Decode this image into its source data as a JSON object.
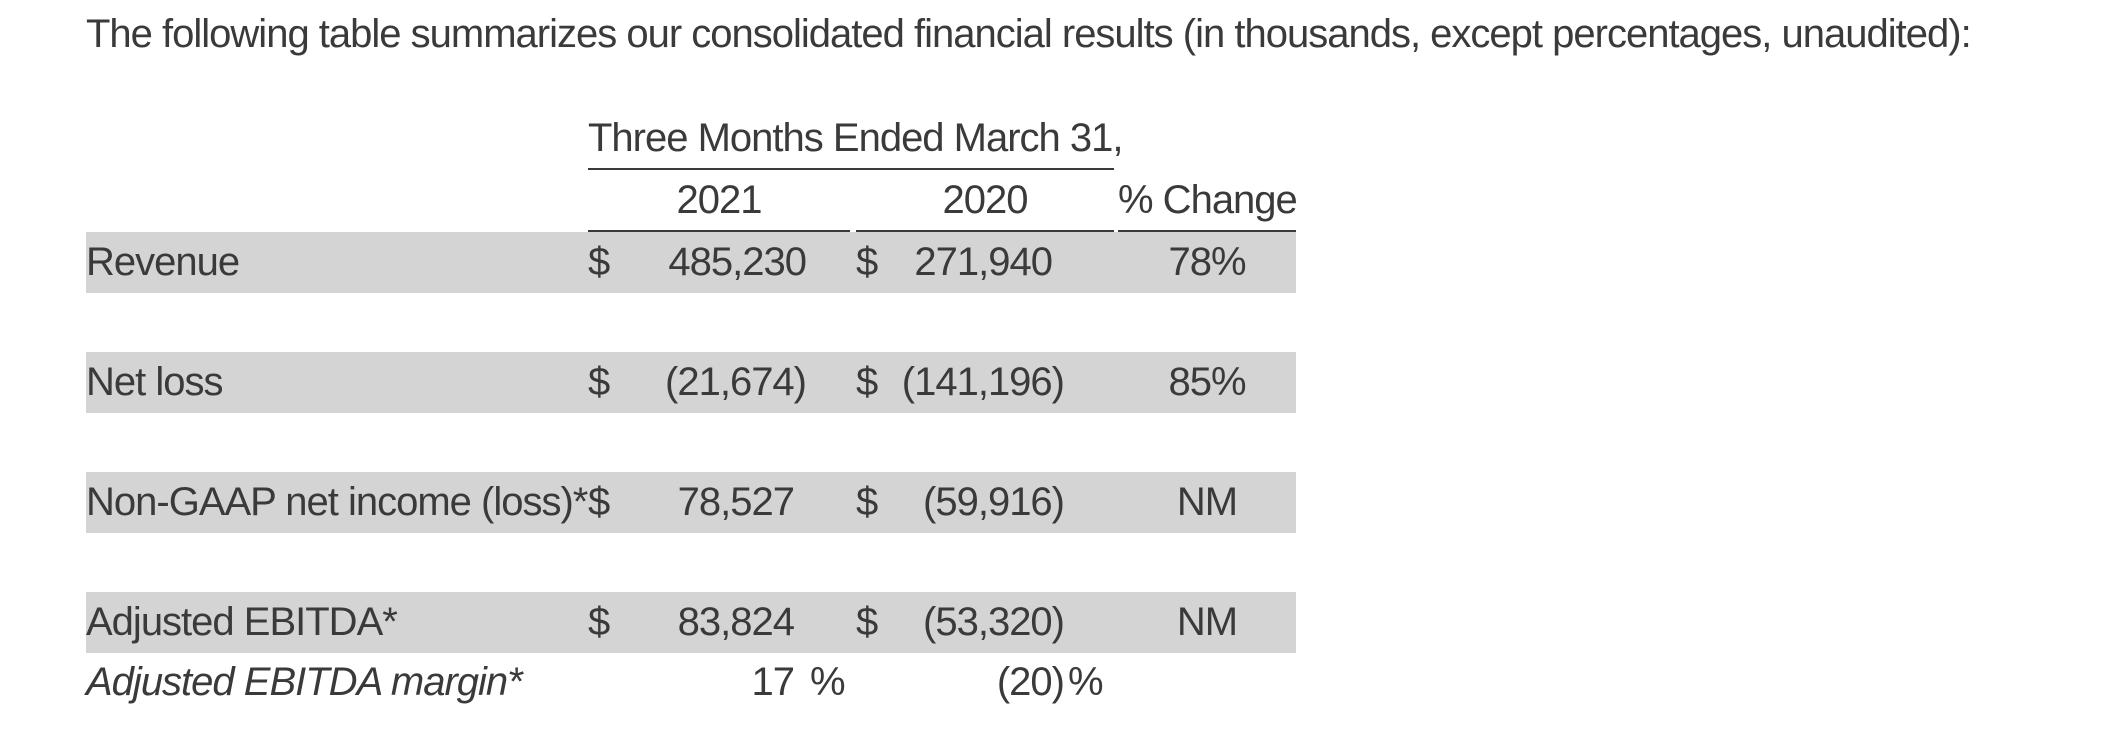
{
  "intro_text": "The following table summarizes our consolidated financial results (in thousands, except percentages, unaudited):",
  "table": {
    "period_header": "Three Months Ended March 31,",
    "col_2021": "2021",
    "col_2020": "2020",
    "col_change": "% Change",
    "rows": [
      {
        "label": "Revenue",
        "cur1": "$",
        "v2021": "485,230",
        "cur2": "$",
        "v2020": "271,940",
        "change": "78%"
      },
      {
        "label": "Net loss",
        "cur1": "$",
        "v2021": "(21,674)",
        "cur2": "$",
        "v2020": "(141,196)",
        "change": "85%"
      },
      {
        "label": "Non-GAAP net income (loss)*",
        "cur1": "$",
        "v2021": "78,527",
        "cur2": "$",
        "v2020": "(59,916)",
        "change": "NM"
      },
      {
        "label": "Adjusted EBITDA*",
        "cur1": "$",
        "v2021": "83,824",
        "cur2": "$",
        "v2020": "(53,320)",
        "change": "NM"
      }
    ],
    "margin_row": {
      "label": "Adjusted EBITDA margin*",
      "v2021": "17",
      "v2021_pct": "%",
      "v2020": "(20)",
      "v2020_pct": "%"
    }
  }
}
